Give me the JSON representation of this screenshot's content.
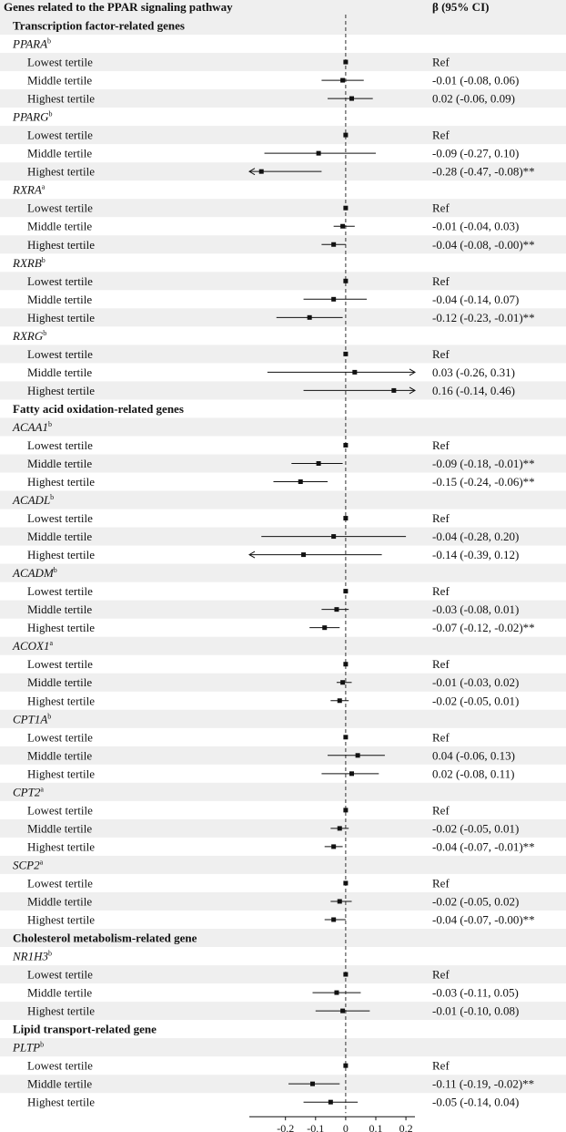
{
  "header": {
    "left": "Genes related to the PPAR signaling pathway",
    "right": "β (95% CI)"
  },
  "colors": {
    "stripe": "#efefef",
    "marks": "#111111",
    "refline": "#333333"
  },
  "chart_data": {
    "type": "forest",
    "xlim": [
      -0.32,
      0.23
    ],
    "ticks": [
      -0.2,
      -0.1,
      0,
      0.1,
      0.2
    ],
    "tick_labels": [
      "-0.2",
      "-0.1",
      "0",
      "0.1",
      "0.2"
    ],
    "reference_line": 0,
    "rows": [
      {
        "kind": "section",
        "label": "Transcription factor-related genes"
      },
      {
        "kind": "gene",
        "label": "PPARA",
        "sup": "b"
      },
      {
        "kind": "est",
        "label": "Lowest tertile",
        "est": 0,
        "lo": null,
        "hi": null,
        "ci": "Ref"
      },
      {
        "kind": "est",
        "label": "Middle tertile",
        "est": -0.01,
        "lo": -0.08,
        "hi": 0.06,
        "ci": "-0.01 (-0.08, 0.06)"
      },
      {
        "kind": "est",
        "label": "Highest tertile",
        "est": 0.02,
        "lo": -0.06,
        "hi": 0.09,
        "ci": "0.02 (-0.06, 0.09)"
      },
      {
        "kind": "gene",
        "label": "PPARG",
        "sup": "b"
      },
      {
        "kind": "est",
        "label": "Lowest tertile",
        "est": 0,
        "lo": null,
        "hi": null,
        "ci": "Ref"
      },
      {
        "kind": "est",
        "label": "Middle tertile",
        "est": -0.09,
        "lo": -0.27,
        "hi": 0.1,
        "ci": "-0.09 (-0.27, 0.10)"
      },
      {
        "kind": "est",
        "label": "Highest tertile",
        "est": -0.28,
        "lo": -0.47,
        "hi": -0.08,
        "ci": "-0.28 (-0.47, -0.08)**"
      },
      {
        "kind": "gene",
        "label": "RXRA",
        "sup": "a"
      },
      {
        "kind": "est",
        "label": "Lowest tertile",
        "est": 0,
        "lo": null,
        "hi": null,
        "ci": "Ref"
      },
      {
        "kind": "est",
        "label": "Middle tertile",
        "est": -0.01,
        "lo": -0.04,
        "hi": 0.03,
        "ci": "-0.01 (-0.04, 0.03)"
      },
      {
        "kind": "est",
        "label": "Highest tertile",
        "est": -0.04,
        "lo": -0.08,
        "hi": -0.0,
        "ci": "-0.04 (-0.08, -0.00)**"
      },
      {
        "kind": "gene",
        "label": "RXRB",
        "sup": "b"
      },
      {
        "kind": "est",
        "label": "Lowest tertile",
        "est": 0,
        "lo": null,
        "hi": null,
        "ci": "Ref"
      },
      {
        "kind": "est",
        "label": "Middle tertile",
        "est": -0.04,
        "lo": -0.14,
        "hi": 0.07,
        "ci": "-0.04 (-0.14, 0.07)"
      },
      {
        "kind": "est",
        "label": "Highest tertile",
        "est": -0.12,
        "lo": -0.23,
        "hi": -0.01,
        "ci": "-0.12 (-0.23, -0.01)**"
      },
      {
        "kind": "gene",
        "label": "RXRG",
        "sup": "b"
      },
      {
        "kind": "est",
        "label": "Lowest tertile",
        "est": 0,
        "lo": null,
        "hi": null,
        "ci": "Ref"
      },
      {
        "kind": "est",
        "label": "Middle tertile",
        "est": 0.03,
        "lo": -0.26,
        "hi": 0.31,
        "ci": "0.03 (-0.26, 0.31)"
      },
      {
        "kind": "est",
        "label": "Highest tertile",
        "est": 0.16,
        "lo": -0.14,
        "hi": 0.46,
        "ci": "0.16 (-0.14, 0.46)"
      },
      {
        "kind": "section",
        "label": "Fatty acid oxidation-related genes"
      },
      {
        "kind": "gene",
        "label": "ACAA1",
        "sup": "b"
      },
      {
        "kind": "est",
        "label": "Lowest tertile",
        "est": 0,
        "lo": null,
        "hi": null,
        "ci": "Ref"
      },
      {
        "kind": "est",
        "label": "Middle tertile",
        "est": -0.09,
        "lo": -0.18,
        "hi": -0.01,
        "ci": "-0.09 (-0.18, -0.01)**"
      },
      {
        "kind": "est",
        "label": "Highest tertile",
        "est": -0.15,
        "lo": -0.24,
        "hi": -0.06,
        "ci": "-0.15 (-0.24, -0.06)**"
      },
      {
        "kind": "gene",
        "label": "ACADL",
        "sup": "b"
      },
      {
        "kind": "est",
        "label": "Lowest tertile",
        "est": 0,
        "lo": null,
        "hi": null,
        "ci": "Ref"
      },
      {
        "kind": "est",
        "label": "Middle tertile",
        "est": -0.04,
        "lo": -0.28,
        "hi": 0.2,
        "ci": "-0.04 (-0.28, 0.20)"
      },
      {
        "kind": "est",
        "label": "Highest tertile",
        "est": -0.14,
        "lo": -0.39,
        "hi": 0.12,
        "ci": "-0.14 (-0.39, 0.12)"
      },
      {
        "kind": "gene",
        "label": "ACADM",
        "sup": "b"
      },
      {
        "kind": "est",
        "label": "Lowest tertile",
        "est": 0,
        "lo": null,
        "hi": null,
        "ci": "Ref"
      },
      {
        "kind": "est",
        "label": "Middle tertile",
        "est": -0.03,
        "lo": -0.08,
        "hi": 0.01,
        "ci": "-0.03 (-0.08, 0.01)"
      },
      {
        "kind": "est",
        "label": "Highest tertile",
        "est": -0.07,
        "lo": -0.12,
        "hi": -0.02,
        "ci": "-0.07 (-0.12, -0.02)**"
      },
      {
        "kind": "gene",
        "label": "ACOX1",
        "sup": "a"
      },
      {
        "kind": "est",
        "label": "Lowest tertile",
        "est": 0,
        "lo": null,
        "hi": null,
        "ci": "Ref"
      },
      {
        "kind": "est",
        "label": "Middle tertile",
        "est": -0.01,
        "lo": -0.03,
        "hi": 0.02,
        "ci": "-0.01 (-0.03, 0.02)"
      },
      {
        "kind": "est",
        "label": "Highest tertile",
        "est": -0.02,
        "lo": -0.05,
        "hi": 0.01,
        "ci": "-0.02 (-0.05, 0.01)"
      },
      {
        "kind": "gene",
        "label": "CPT1A",
        "sup": "b"
      },
      {
        "kind": "est",
        "label": "Lowest tertile",
        "est": 0,
        "lo": null,
        "hi": null,
        "ci": "Ref"
      },
      {
        "kind": "est",
        "label": "Middle tertile",
        "est": 0.04,
        "lo": -0.06,
        "hi": 0.13,
        "ci": "0.04 (-0.06, 0.13)"
      },
      {
        "kind": "est",
        "label": "Highest tertile",
        "est": 0.02,
        "lo": -0.08,
        "hi": 0.11,
        "ci": "0.02 (-0.08, 0.11)"
      },
      {
        "kind": "gene",
        "label": "CPT2",
        "sup": "a"
      },
      {
        "kind": "est",
        "label": "Lowest tertile",
        "est": 0,
        "lo": null,
        "hi": null,
        "ci": "Ref"
      },
      {
        "kind": "est",
        "label": "Middle tertile",
        "est": -0.02,
        "lo": -0.05,
        "hi": 0.01,
        "ci": "-0.02 (-0.05, 0.01)"
      },
      {
        "kind": "est",
        "label": "Highest tertile",
        "est": -0.04,
        "lo": -0.07,
        "hi": -0.01,
        "ci": "-0.04 (-0.07, -0.01)**"
      },
      {
        "kind": "gene",
        "label": "SCP2",
        "sup": "a"
      },
      {
        "kind": "est",
        "label": "Lowest tertile",
        "est": 0,
        "lo": null,
        "hi": null,
        "ci": "Ref"
      },
      {
        "kind": "est",
        "label": "Middle tertile",
        "est": -0.02,
        "lo": -0.05,
        "hi": 0.02,
        "ci": "-0.02 (-0.05, 0.02)"
      },
      {
        "kind": "est",
        "label": "Highest tertile",
        "est": -0.04,
        "lo": -0.07,
        "hi": -0.0,
        "ci": "-0.04 (-0.07, -0.00)**"
      },
      {
        "kind": "section",
        "label": "Cholesterol metabolism-related gene"
      },
      {
        "kind": "gene",
        "label": "NR1H3",
        "sup": "b"
      },
      {
        "kind": "est",
        "label": "Lowest tertile",
        "est": 0,
        "lo": null,
        "hi": null,
        "ci": "Ref"
      },
      {
        "kind": "est",
        "label": "Middle tertile",
        "est": -0.03,
        "lo": -0.11,
        "hi": 0.05,
        "ci": "-0.03 (-0.11, 0.05)"
      },
      {
        "kind": "est",
        "label": "Highest tertile",
        "est": -0.01,
        "lo": -0.1,
        "hi": 0.08,
        "ci": "-0.01 (-0.10, 0.08)"
      },
      {
        "kind": "section",
        "label": "Lipid transport-related gene"
      },
      {
        "kind": "gene",
        "label": "PLTP",
        "sup": "b"
      },
      {
        "kind": "est",
        "label": "Lowest tertile",
        "est": 0,
        "lo": null,
        "hi": null,
        "ci": "Ref"
      },
      {
        "kind": "est",
        "label": "Middle tertile",
        "est": -0.11,
        "lo": -0.19,
        "hi": -0.02,
        "ci": "-0.11 (-0.19, -0.02)**"
      },
      {
        "kind": "est",
        "label": "Highest tertile",
        "est": -0.05,
        "lo": -0.14,
        "hi": 0.04,
        "ci": "-0.05 (-0.14, 0.04)"
      }
    ]
  }
}
